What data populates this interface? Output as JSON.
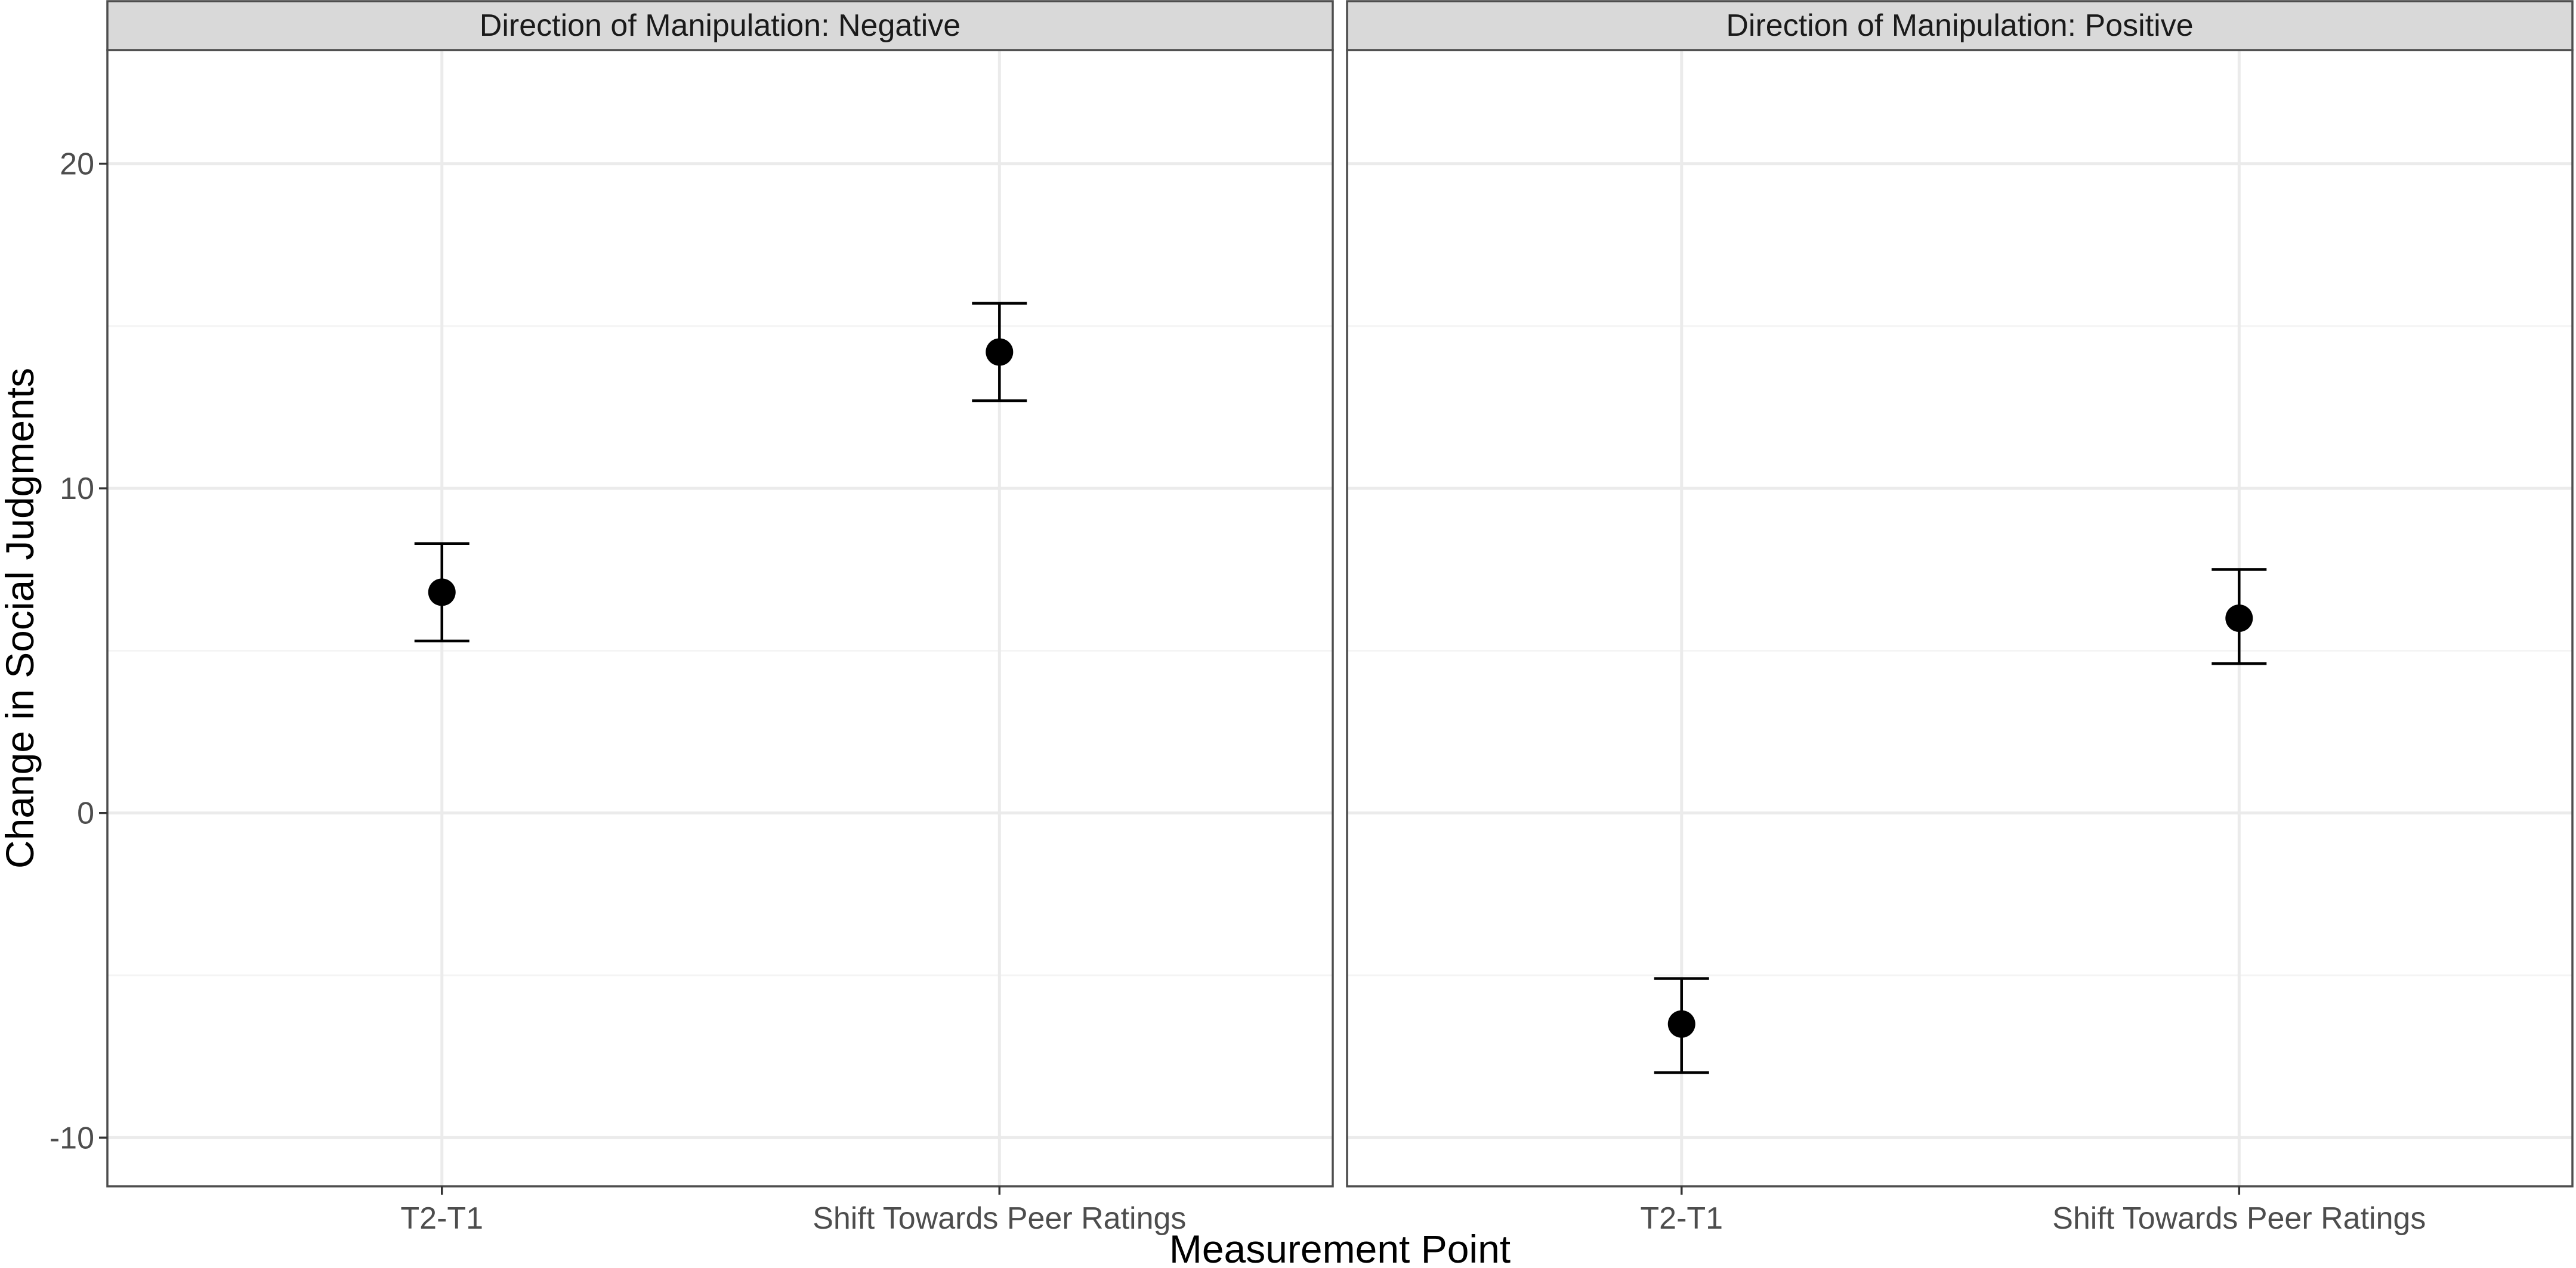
{
  "chart_data": {
    "type": "scatter",
    "subtype": "point-with-errorbars",
    "xlabel": "Measurement Point",
    "ylabel": "Change in Social Judgments",
    "ylim": [
      -11.5,
      23.5
    ],
    "yticks": [
      -10,
      0,
      10,
      20
    ],
    "categories": [
      "T2-T1",
      "Shift Towards Peer Ratings"
    ],
    "grid": true,
    "legend": "none",
    "colors": {
      "point": "#000000",
      "errorbar": "#000000",
      "strip_bg": "#d9d9d9",
      "panel_border": "#4d4d4d",
      "grid_major": "#ebebeb",
      "grid_minor": "#f4f4f4"
    },
    "panels": [
      {
        "title": "Direction of Manipulation: Negative",
        "points": [
          {
            "x": "T2-T1",
            "y": 6.8,
            "ymin": 5.3,
            "ymax": 8.3
          },
          {
            "x": "Shift Towards Peer Ratings",
            "y": 14.2,
            "ymin": 12.7,
            "ymax": 15.7
          }
        ]
      },
      {
        "title": "Direction of Manipulation: Positive",
        "points": [
          {
            "x": "T2-T1",
            "y": -6.5,
            "ymin": -8.0,
            "ymax": -5.1
          },
          {
            "x": "Shift Towards Peer Ratings",
            "y": 6.0,
            "ymin": 4.6,
            "ymax": 7.5
          }
        ]
      }
    ]
  }
}
